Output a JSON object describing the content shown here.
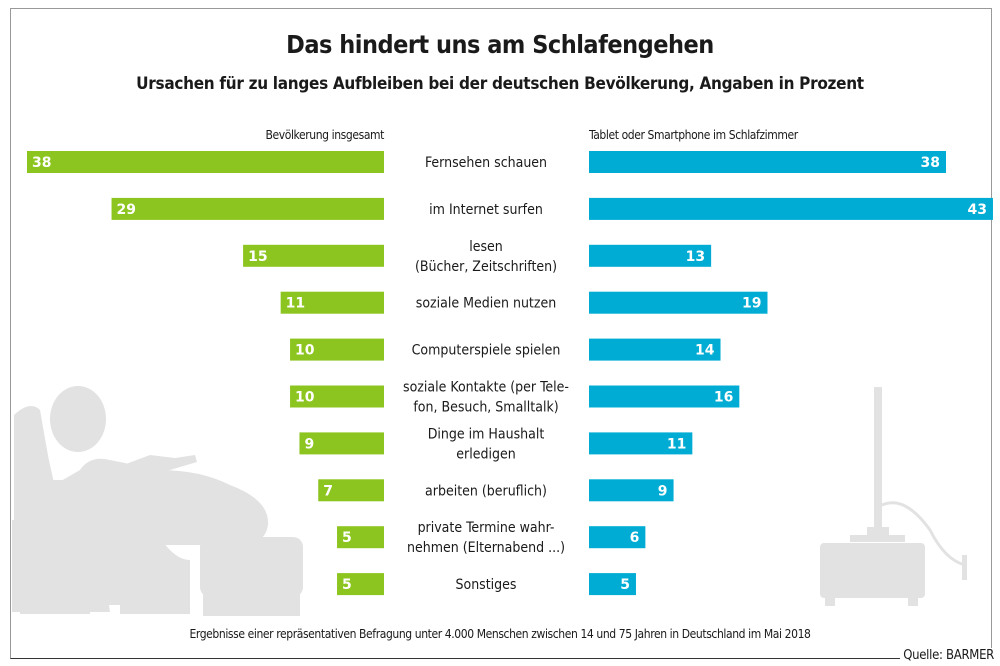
{
  "title": "Das hindert uns am Schlafengehen",
  "subtitle": "Ursachen für zu langes Aufbleiben bei der deutschen Bevölkerung, Angaben in Prozent",
  "footer": "Ergebnisse einer repräsentativen Befragung unter 4.000 Menschen zwischen 14 und 75 Jahren in Deutschland im Mai 2018",
  "source": "Quelle: BARMER",
  "chart_data": {
    "type": "bar",
    "orientation": "horizontal-butterfly",
    "categories": [
      [
        "Fernsehen schauen"
      ],
      [
        "im Internet surfen"
      ],
      [
        "lesen",
        "(Bücher, Zeitschriften)"
      ],
      [
        "soziale Medien nutzen"
      ],
      [
        "Computerspiele spielen"
      ],
      [
        "soziale Kontakte (per Tele-",
        "fon, Besuch, Smalltalk)"
      ],
      [
        "Dinge im Haushalt",
        "erledigen"
      ],
      [
        "arbeiten (beruflich)"
      ],
      [
        "private Termine wahr-",
        "nehmen (Elternabend ...)"
      ],
      [
        "Sonstiges"
      ]
    ],
    "series": [
      {
        "name": "Bevölkerung insgesamt",
        "color": "#8dc520",
        "values": [
          38,
          29,
          15,
          11,
          10,
          10,
          9,
          7,
          5,
          5
        ]
      },
      {
        "name": "Tablet oder Smartphone im Schlafzimmer",
        "color": "#00acd4",
        "values": [
          38,
          43,
          13,
          19,
          14,
          16,
          11,
          9,
          6,
          5
        ]
      }
    ],
    "grid": false
  }
}
